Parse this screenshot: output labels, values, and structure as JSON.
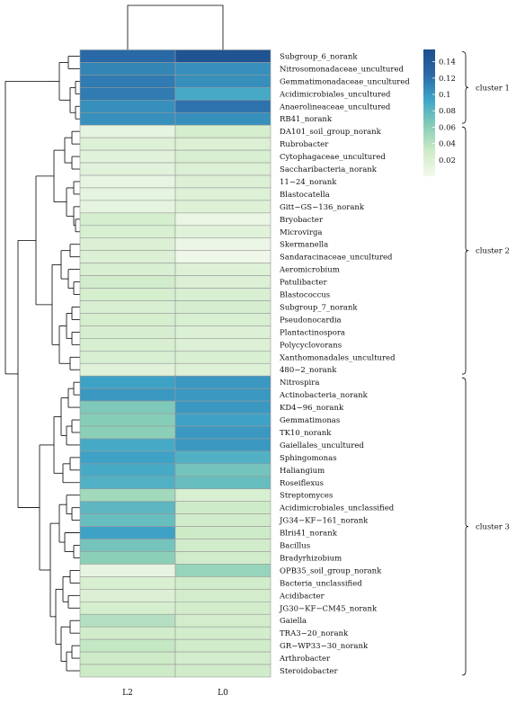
{
  "chart_data": {
    "type": "heatmap",
    "columns": [
      "L2",
      "L0"
    ],
    "rows": [
      {
        "name": "Subgroup_6_norank",
        "values": [
          0.125,
          0.15
        ]
      },
      {
        "name": "Nitrosomonadaceae_uncultured",
        "values": [
          0.11,
          0.105
        ]
      },
      {
        "name": "Gemmatimonadaceae_uncultured",
        "values": [
          0.115,
          0.105
        ]
      },
      {
        "name": "Acidimicrobiales_uncultured",
        "values": [
          0.115,
          0.09
        ]
      },
      {
        "name": "Anaerolineaceae_uncultured",
        "values": [
          0.105,
          0.12
        ]
      },
      {
        "name": "RB41_norank",
        "values": [
          0.105,
          0.105
        ]
      },
      {
        "name": "DA101_soil_group_norank",
        "values": [
          0.012,
          0.025
        ]
      },
      {
        "name": "Rubrobacter",
        "values": [
          0.018,
          0.02
        ]
      },
      {
        "name": "Cytophagaceae_uncultured",
        "values": [
          0.015,
          0.022
        ]
      },
      {
        "name": "Saccharibacteria_norank",
        "values": [
          0.015,
          0.02
        ]
      },
      {
        "name": "11-24_norank",
        "values": [
          0.01,
          0.02
        ]
      },
      {
        "name": "Blastocatella",
        "values": [
          0.012,
          0.018
        ]
      },
      {
        "name": "Gitt-GS-136_norank",
        "values": [
          0.012,
          0.018
        ]
      },
      {
        "name": "Bryobacter",
        "values": [
          0.025,
          0.008
        ]
      },
      {
        "name": "Microvirga",
        "values": [
          0.022,
          0.015
        ]
      },
      {
        "name": "Skermanella",
        "values": [
          0.02,
          0.006
        ]
      },
      {
        "name": "Sandaracinaceae_uncultured",
        "values": [
          0.02,
          0.004
        ]
      },
      {
        "name": "Aeromicrobium",
        "values": [
          0.022,
          0.018
        ]
      },
      {
        "name": "Patulibacter",
        "values": [
          0.028,
          0.02
        ]
      },
      {
        "name": "Blastococcus",
        "values": [
          0.025,
          0.022
        ]
      },
      {
        "name": "Subgroup_7_norank",
        "values": [
          0.022,
          0.024
        ]
      },
      {
        "name": "Pseudonocardia",
        "values": [
          0.025,
          0.022
        ]
      },
      {
        "name": "Plantactinospora",
        "values": [
          0.024,
          0.02
        ]
      },
      {
        "name": "Polycyclovorans",
        "values": [
          0.023,
          0.02
        ]
      },
      {
        "name": "Xanthomonadales_uncultured",
        "values": [
          0.022,
          0.022
        ]
      },
      {
        "name": "480-2_norank",
        "values": [
          0.016,
          0.018
        ]
      },
      {
        "name": "Nitrospira",
        "values": [
          0.095,
          0.1
        ]
      },
      {
        "name": "Actinobacteria_norank",
        "values": [
          0.1,
          0.1
        ]
      },
      {
        "name": "KD4-96_norank",
        "values": [
          0.065,
          0.1
        ]
      },
      {
        "name": "Gemmatimonas",
        "values": [
          0.062,
          0.095
        ]
      },
      {
        "name": "TK10_norank",
        "values": [
          0.06,
          0.1
        ]
      },
      {
        "name": "Gaiellales_uncultured",
        "values": [
          0.09,
          0.1
        ]
      },
      {
        "name": "Sphingomonas",
        "values": [
          0.095,
          0.085
        ]
      },
      {
        "name": "Haliangium",
        "values": [
          0.09,
          0.07
        ]
      },
      {
        "name": "Roseiflexus",
        "values": [
          0.085,
          0.075
        ]
      },
      {
        "name": "Streptomyces",
        "values": [
          0.05,
          0.022
        ]
      },
      {
        "name": "Acidimicrobiales_unclassified",
        "values": [
          0.08,
          0.03
        ]
      },
      {
        "name": "JG34-KF-161_norank",
        "values": [
          0.075,
          0.028
        ]
      },
      {
        "name": "Blrii41_norank",
        "values": [
          0.095,
          0.03
        ]
      },
      {
        "name": "Bacillus",
        "values": [
          0.07,
          0.028
        ]
      },
      {
        "name": "Bradyrhizobium",
        "values": [
          0.06,
          0.028
        ]
      },
      {
        "name": "OPB35_soil_group_norank",
        "values": [
          0.01,
          0.055
        ]
      },
      {
        "name": "Bacteria_unclassified",
        "values": [
          0.022,
          0.028
        ]
      },
      {
        "name": "Acidibacter",
        "values": [
          0.02,
          0.026
        ]
      },
      {
        "name": "JG30-KF-CM45_norank",
        "values": [
          0.025,
          0.026
        ]
      },
      {
        "name": "Gaiella",
        "values": [
          0.042,
          0.026
        ]
      },
      {
        "name": "TRA3-20_norank",
        "values": [
          0.028,
          0.026
        ]
      },
      {
        "name": "GR-WP33-30_norank",
        "values": [
          0.035,
          0.028
        ]
      },
      {
        "name": "Arthrobacter",
        "values": [
          0.03,
          0.026
        ]
      },
      {
        "name": "Steroidobacter",
        "values": [
          0.03,
          0.028
        ]
      }
    ],
    "color_scale": {
      "min": 0.0,
      "max": 0.155,
      "colors": [
        "#f4f9ee",
        "#cdebc6",
        "#86cdb8",
        "#3fa6c8",
        "#2a6aa8",
        "#1e4f8c"
      ],
      "ticks": [
        {
          "value": 0.14,
          "label": "0.14"
        },
        {
          "value": 0.12,
          "label": "0.12"
        },
        {
          "value": 0.1,
          "label": "0.1"
        },
        {
          "value": 0.08,
          "label": "0.08"
        },
        {
          "value": 0.06,
          "label": "0.06"
        },
        {
          "value": 0.04,
          "label": "0.04"
        },
        {
          "value": 0.02,
          "label": "0.02"
        }
      ]
    },
    "clusters": [
      {
        "label": "cluster 1",
        "start": 0,
        "end": 5
      },
      {
        "label": "cluster 2",
        "start": 6,
        "end": 25
      },
      {
        "label": "cluster 3",
        "start": 26,
        "end": 49
      }
    ]
  }
}
